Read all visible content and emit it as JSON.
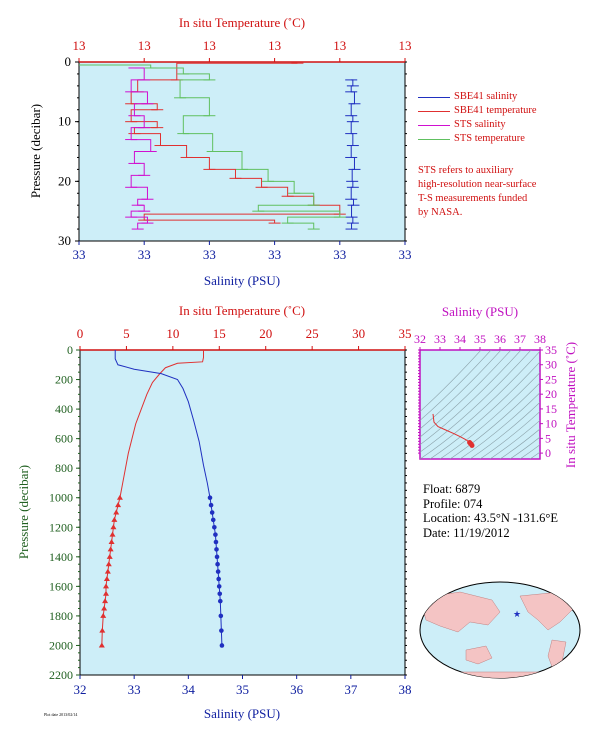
{
  "colors": {
    "temperature": "#e03030",
    "salinity": "#2030c0",
    "sts_salinity": "#d010d0",
    "sts_temperature": "#60c060",
    "sbe_temperature_light": "#f08080",
    "plot_bg": "#cdeef8",
    "axis_red": "#d01010",
    "axis_blue": "#1020a0",
    "axis_green": "#206020",
    "axis_magenta": "#c010c0"
  },
  "legend": {
    "items": [
      {
        "label": "SBE41 salinity",
        "color": "#2030c0",
        "icon": "line-swatch"
      },
      {
        "label": "SBE41 temperature",
        "color": "#e03030",
        "icon": "line-swatch"
      },
      {
        "label": "STS salinity",
        "color": "#d010d0",
        "icon": "line-swatch"
      },
      {
        "label": "STS temperature",
        "color": "#60c060",
        "icon": "line-swatch"
      }
    ],
    "note_lines": [
      "STS refers to auxiliary",
      "high-resolution near-surface",
      "T-S measurements funded",
      "by NASA."
    ]
  },
  "float_info": {
    "float": "Float:  6879",
    "profile": "Profile:  074",
    "location": "Location:  43.5°N  -131.6°E",
    "date": "Date:  11/19/2012"
  },
  "credit": "Plot date 2013/02/14",
  "chart_data": [
    {
      "type": "line",
      "id": "near-surface",
      "title": "",
      "top_label": "In situ Temperature (˚C)",
      "bottom_label": "Salinity (PSU)",
      "ylabel": "Pressure (decibar)",
      "ylim": [
        0,
        30
      ],
      "y_ticks": [
        0,
        10,
        20,
        30
      ],
      "top_ticks": [
        "13",
        "13",
        "13",
        "13",
        "13",
        "13"
      ],
      "bottom_ticks": [
        "33",
        "33",
        "33",
        "33",
        "33",
        "33"
      ],
      "grid": false,
      "legend_position": "right",
      "series": [
        {
          "name": "SBE41 salinity",
          "color": "#2030c0",
          "x": [
            0.835,
            0.84,
            0.835,
            0.845,
            0.835,
            0.84,
            0.835,
            0.84,
            0.835,
            0.845,
            0.838,
            0.84,
            0.835,
            0.842,
            0.836,
            0.84,
            0.836
          ],
          "y": [
            3,
            4,
            5,
            7,
            9,
            10,
            12,
            14,
            16,
            18,
            20,
            21,
            23,
            24,
            26,
            27,
            28
          ]
        },
        {
          "name": "SBE41 temperature",
          "color": "#e03030",
          "x": [
            0.67,
            0.3,
            0.18,
            0.16,
            0.24,
            0.16,
            0.24,
            0.17,
            0.25,
            0.33,
            0.4,
            0.48,
            0.56,
            0.64,
            0.72,
            0.8,
            0.2,
            0.6
          ],
          "y": [
            0.2,
            3,
            5,
            7,
            8,
            10,
            11,
            12,
            14,
            16,
            18,
            19.5,
            21,
            22.5,
            24,
            25.5,
            26.5,
            27
          ]
        },
        {
          "name": "STS salinity",
          "color": "#d010d0",
          "x": [
            0.17,
            0.2,
            0.16,
            0.21,
            0.17,
            0.2,
            0.16,
            0.22,
            0.17,
            0.2,
            0.16,
            0.21,
            0.18,
            0.2,
            0.16,
            0.21,
            0.18
          ],
          "y": [
            1,
            3,
            5,
            7,
            9,
            11,
            13,
            15,
            17,
            19,
            21,
            23,
            24,
            25,
            26,
            27,
            28
          ]
        },
        {
          "name": "STS temperature",
          "color": "#60c060",
          "x": [
            0.0,
            0.22,
            0.32,
            0.4,
            0.31,
            0.4,
            0.32,
            0.41,
            0.5,
            0.58,
            0.66,
            0.72,
            0.55,
            0.8,
            0.64,
            0.72
          ],
          "y": [
            0.5,
            1,
            2,
            3,
            6,
            9,
            12,
            15,
            18,
            20,
            22,
            24,
            25,
            26,
            27,
            28
          ]
        }
      ]
    },
    {
      "type": "line",
      "id": "full-profile",
      "title": "",
      "top_label": "In situ Temperature (˚C)",
      "bottom_label": "Salinity (PSU)",
      "ylabel": "Pressure (decibar)",
      "xlim_temperature": [
        0,
        35
      ],
      "xlim_salinity": [
        32,
        38
      ],
      "ylim": [
        0,
        2200
      ],
      "temperature_ticks": [
        0,
        5,
        10,
        15,
        20,
        25,
        30,
        35
      ],
      "salinity_ticks": [
        32,
        33,
        34,
        35,
        36,
        37,
        38
      ],
      "pressure_ticks": [
        0,
        200,
        400,
        600,
        800,
        1000,
        1200,
        1400,
        1600,
        1800,
        2000,
        2200
      ],
      "grid": false,
      "series": [
        {
          "name": "Temperature",
          "color": "#e03030",
          "axis": "temperature",
          "x": [
            13.3,
            13.3,
            13.2,
            10.5,
            9.2,
            8.6,
            7.8,
            7.2,
            6.6,
            6.0,
            5.6,
            5.2,
            4.9,
            4.6,
            4.3,
            4.1,
            3.9,
            3.7,
            3.6,
            3.5,
            3.4,
            3.3,
            3.2,
            3.1,
            3.0,
            2.9,
            2.8,
            2.8,
            2.7,
            2.6,
            2.5,
            2.4,
            2.35
          ],
          "y": [
            0,
            50,
            80,
            90,
            120,
            160,
            220,
            300,
            400,
            500,
            600,
            700,
            800,
            900,
            1000,
            1050,
            1100,
            1150,
            1200,
            1250,
            1300,
            1350,
            1400,
            1450,
            1500,
            1550,
            1600,
            1650,
            1700,
            1750,
            1800,
            1900,
            2000
          ]
        },
        {
          "name": "Salinity",
          "color": "#2030c0",
          "axis": "salinity",
          "x": [
            32.65,
            32.65,
            32.7,
            33.0,
            33.5,
            33.8,
            33.9,
            34.0,
            34.1,
            34.2,
            34.28,
            34.35,
            34.4,
            34.42,
            34.44,
            34.46,
            34.48,
            34.5,
            34.51,
            34.52,
            34.53,
            34.54,
            34.55,
            34.56,
            34.57,
            34.58,
            34.59,
            34.6,
            34.61,
            34.62
          ],
          "y": [
            0,
            60,
            100,
            130,
            160,
            200,
            260,
            350,
            480,
            620,
            780,
            900,
            1000,
            1050,
            1100,
            1150,
            1200,
            1250,
            1300,
            1350,
            1400,
            1450,
            1500,
            1550,
            1600,
            1650,
            1700,
            1800,
            1900,
            2000
          ]
        }
      ],
      "marked_from_pressure": 1000
    },
    {
      "type": "scatter",
      "id": "ts-diagram",
      "title": "",
      "top_label": "Salinity (PSU)",
      "right_label": "In situ Temperature (˚C)",
      "xlim": [
        32,
        38
      ],
      "ylim": [
        -2,
        35
      ],
      "x_ticks": [
        32,
        33,
        34,
        35,
        36,
        37,
        38
      ],
      "y_ticks": [
        0,
        5,
        10,
        15,
        20,
        25,
        30,
        35
      ],
      "background_contours": "density",
      "series": [
        {
          "name": "T-S",
          "color": "#e03030",
          "x": [
            32.65,
            32.7,
            32.9,
            33.3,
            33.7,
            34.0,
            34.2,
            34.35,
            34.42,
            34.48,
            34.52,
            34.56,
            34.6
          ],
          "y": [
            13.3,
            10.5,
            9.0,
            7.8,
            6.6,
            5.6,
            4.9,
            4.3,
            3.9,
            3.6,
            3.3,
            3.0,
            2.6
          ]
        }
      ]
    }
  ],
  "map": {
    "marker": "float-location-star",
    "marker_color": "#2030c0"
  }
}
